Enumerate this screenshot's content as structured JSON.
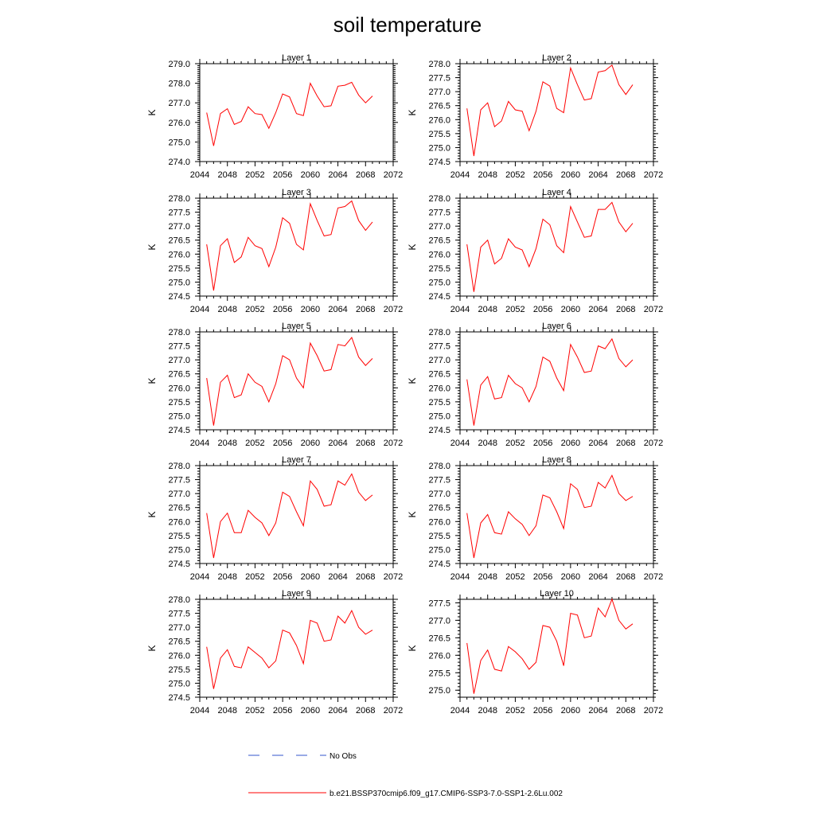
{
  "title": "soil temperature",
  "ylabel": "K",
  "xticks": [
    2044,
    2048,
    2052,
    2056,
    2060,
    2064,
    2068,
    2072
  ],
  "legend": {
    "no_obs": "No Obs",
    "model": "b.e21.BSSP370cmip6.f09_g17.CMIP6-SSP3-7.0-SSP1-2.6Lu.002"
  },
  "colors": {
    "model": "#ff0000",
    "no_obs": "#3355cc",
    "axis": "#000000"
  },
  "chart_data": [
    {
      "type": "line",
      "title": "Layer 1",
      "ylabel": "K",
      "xlim": [
        2044,
        2072
      ],
      "ylim": [
        274.0,
        279.0
      ],
      "yticks": [
        "274.0",
        "275.0",
        "276.0",
        "277.0",
        "278.0",
        "279.0"
      ],
      "x": [
        2045,
        2046,
        2047,
        2048,
        2049,
        2050,
        2051,
        2052,
        2053,
        2054,
        2055,
        2056,
        2057,
        2058,
        2059,
        2060,
        2061,
        2062,
        2063,
        2064,
        2065,
        2066,
        2067,
        2068,
        2069
      ],
      "series": [
        {
          "name": "b.e21.BSSP370cmip6.f09_g17.CMIP6-SSP3-7.0-SSP1-2.6Lu.002",
          "values": [
            276.5,
            274.8,
            276.45,
            276.7,
            275.9,
            276.05,
            276.8,
            276.45,
            276.4,
            275.7,
            276.5,
            277.45,
            277.3,
            276.45,
            276.35,
            278.0,
            277.35,
            276.8,
            276.85,
            277.85,
            277.9,
            278.05,
            277.4,
            277.0,
            277.35
          ]
        }
      ]
    },
    {
      "type": "line",
      "title": "Layer 2",
      "ylabel": "K",
      "xlim": [
        2044,
        2072
      ],
      "ylim": [
        274.5,
        278.0
      ],
      "yticks": [
        "274.5",
        "275.0",
        "275.5",
        "276.0",
        "276.5",
        "277.0",
        "277.5",
        "278.0"
      ],
      "x": [
        2045,
        2046,
        2047,
        2048,
        2049,
        2050,
        2051,
        2052,
        2053,
        2054,
        2055,
        2056,
        2057,
        2058,
        2059,
        2060,
        2061,
        2062,
        2063,
        2064,
        2065,
        2066,
        2067,
        2068,
        2069
      ],
      "series": [
        {
          "name": "b.e21.BSSP370cmip6.f09_g17.CMIP6-SSP3-7.0-SSP1-2.6Lu.002",
          "values": [
            276.4,
            274.7,
            276.35,
            276.6,
            275.75,
            275.95,
            276.65,
            276.35,
            276.3,
            275.6,
            276.3,
            277.35,
            277.2,
            276.4,
            276.25,
            277.85,
            277.25,
            276.7,
            276.75,
            277.7,
            277.75,
            277.95,
            277.25,
            276.9,
            277.25
          ]
        }
      ]
    },
    {
      "type": "line",
      "title": "Layer 3",
      "ylabel": "K",
      "xlim": [
        2044,
        2072
      ],
      "ylim": [
        274.5,
        278.0
      ],
      "yticks": [
        "274.5",
        "275.0",
        "275.5",
        "276.0",
        "276.5",
        "277.0",
        "277.5",
        "278.0"
      ],
      "x": [
        2045,
        2046,
        2047,
        2048,
        2049,
        2050,
        2051,
        2052,
        2053,
        2054,
        2055,
        2056,
        2057,
        2058,
        2059,
        2060,
        2061,
        2062,
        2063,
        2064,
        2065,
        2066,
        2067,
        2068,
        2069
      ],
      "series": [
        {
          "name": "b.e21.BSSP370cmip6.f09_g17.CMIP6-SSP3-7.0-SSP1-2.6Lu.002",
          "values": [
            276.35,
            274.7,
            276.3,
            276.55,
            275.7,
            275.9,
            276.6,
            276.3,
            276.2,
            275.55,
            276.25,
            277.3,
            277.1,
            276.35,
            276.15,
            277.8,
            277.2,
            276.65,
            276.7,
            277.65,
            277.7,
            277.9,
            277.2,
            276.85,
            277.15
          ]
        }
      ]
    },
    {
      "type": "line",
      "title": "Layer 4",
      "ylabel": "K",
      "xlim": [
        2044,
        2072
      ],
      "ylim": [
        274.5,
        278.0
      ],
      "yticks": [
        "274.5",
        "275.0",
        "275.5",
        "276.0",
        "276.5",
        "277.0",
        "277.5",
        "278.0"
      ],
      "x": [
        2045,
        2046,
        2047,
        2048,
        2049,
        2050,
        2051,
        2052,
        2053,
        2054,
        2055,
        2056,
        2057,
        2058,
        2059,
        2060,
        2061,
        2062,
        2063,
        2064,
        2065,
        2066,
        2067,
        2068,
        2069
      ],
      "series": [
        {
          "name": "b.e21.BSSP370cmip6.f09_g17.CMIP6-SSP3-7.0-SSP1-2.6Lu.002",
          "values": [
            276.35,
            274.65,
            276.25,
            276.5,
            275.65,
            275.85,
            276.55,
            276.25,
            276.15,
            275.55,
            276.2,
            277.25,
            277.05,
            276.3,
            276.05,
            277.7,
            277.15,
            276.6,
            276.65,
            277.6,
            277.6,
            277.85,
            277.15,
            276.8,
            277.1
          ]
        }
      ]
    },
    {
      "type": "line",
      "title": "Layer 5",
      "ylabel": "K",
      "xlim": [
        2044,
        2072
      ],
      "ylim": [
        274.5,
        278.0
      ],
      "yticks": [
        "274.5",
        "275.0",
        "275.5",
        "276.0",
        "276.5",
        "277.0",
        "277.5",
        "278.0"
      ],
      "x": [
        2045,
        2046,
        2047,
        2048,
        2049,
        2050,
        2051,
        2052,
        2053,
        2054,
        2055,
        2056,
        2057,
        2058,
        2059,
        2060,
        2061,
        2062,
        2063,
        2064,
        2065,
        2066,
        2067,
        2068,
        2069
      ],
      "series": [
        {
          "name": "b.e21.BSSP370cmip6.f09_g17.CMIP6-SSP3-7.0-SSP1-2.6Lu.002",
          "values": [
            276.35,
            274.65,
            276.2,
            276.45,
            275.65,
            275.75,
            276.5,
            276.2,
            276.05,
            275.5,
            276.15,
            277.15,
            277.0,
            276.35,
            276.0,
            277.6,
            277.15,
            276.6,
            276.65,
            277.55,
            277.5,
            277.8,
            277.1,
            276.8,
            277.05
          ]
        }
      ]
    },
    {
      "type": "line",
      "title": "Layer 6",
      "ylabel": "K",
      "xlim": [
        2044,
        2072
      ],
      "ylim": [
        274.5,
        278.0
      ],
      "yticks": [
        "274.5",
        "275.0",
        "275.5",
        "276.0",
        "276.5",
        "277.0",
        "277.5",
        "278.0"
      ],
      "x": [
        2045,
        2046,
        2047,
        2048,
        2049,
        2050,
        2051,
        2052,
        2053,
        2054,
        2055,
        2056,
        2057,
        2058,
        2059,
        2060,
        2061,
        2062,
        2063,
        2064,
        2065,
        2066,
        2067,
        2068,
        2069
      ],
      "series": [
        {
          "name": "b.e21.BSSP370cmip6.f09_g17.CMIP6-SSP3-7.0-SSP1-2.6Lu.002",
          "values": [
            276.3,
            274.65,
            276.1,
            276.4,
            275.6,
            275.65,
            276.45,
            276.15,
            276.0,
            275.5,
            276.05,
            277.1,
            276.95,
            276.35,
            275.9,
            277.55,
            277.1,
            276.55,
            276.6,
            277.5,
            277.4,
            277.75,
            277.05,
            276.75,
            277.0
          ]
        }
      ]
    },
    {
      "type": "line",
      "title": "Layer 7",
      "ylabel": "K",
      "xlim": [
        2044,
        2072
      ],
      "ylim": [
        274.5,
        278.0
      ],
      "yticks": [
        "274.5",
        "275.0",
        "275.5",
        "276.0",
        "276.5",
        "277.0",
        "277.5",
        "278.0"
      ],
      "x": [
        2045,
        2046,
        2047,
        2048,
        2049,
        2050,
        2051,
        2052,
        2053,
        2054,
        2055,
        2056,
        2057,
        2058,
        2059,
        2060,
        2061,
        2062,
        2063,
        2064,
        2065,
        2066,
        2067,
        2068,
        2069
      ],
      "series": [
        {
          "name": "b.e21.BSSP370cmip6.f09_g17.CMIP6-SSP3-7.0-SSP1-2.6Lu.002",
          "values": [
            276.3,
            274.7,
            276.0,
            276.3,
            275.6,
            275.6,
            276.4,
            276.15,
            275.95,
            275.5,
            275.95,
            277.05,
            276.9,
            276.35,
            275.85,
            277.45,
            277.15,
            276.55,
            276.6,
            277.45,
            277.3,
            277.7,
            277.05,
            276.75,
            276.95
          ]
        }
      ]
    },
    {
      "type": "line",
      "title": "Layer 8",
      "ylabel": "K",
      "xlim": [
        2044,
        2072
      ],
      "ylim": [
        274.5,
        278.0
      ],
      "yticks": [
        "274.5",
        "275.0",
        "275.5",
        "276.0",
        "276.5",
        "277.0",
        "277.5",
        "278.0"
      ],
      "x": [
        2045,
        2046,
        2047,
        2048,
        2049,
        2050,
        2051,
        2052,
        2053,
        2054,
        2055,
        2056,
        2057,
        2058,
        2059,
        2060,
        2061,
        2062,
        2063,
        2064,
        2065,
        2066,
        2067,
        2068,
        2069
      ],
      "series": [
        {
          "name": "b.e21.BSSP370cmip6.f09_g17.CMIP6-SSP3-7.0-SSP1-2.6Lu.002",
          "values": [
            276.3,
            274.7,
            275.95,
            276.25,
            275.6,
            275.55,
            276.35,
            276.1,
            275.9,
            275.5,
            275.85,
            276.95,
            276.85,
            276.35,
            275.75,
            277.35,
            277.15,
            276.5,
            276.55,
            277.4,
            277.2,
            277.65,
            277.0,
            276.75,
            276.9
          ]
        }
      ]
    },
    {
      "type": "line",
      "title": "Layer 9",
      "ylabel": "K",
      "xlim": [
        2044,
        2072
      ],
      "ylim": [
        274.5,
        278.0
      ],
      "yticks": [
        "274.5",
        "275.0",
        "275.5",
        "276.0",
        "276.5",
        "277.0",
        "277.5",
        "278.0"
      ],
      "x": [
        2045,
        2046,
        2047,
        2048,
        2049,
        2050,
        2051,
        2052,
        2053,
        2054,
        2055,
        2056,
        2057,
        2058,
        2059,
        2060,
        2061,
        2062,
        2063,
        2064,
        2065,
        2066,
        2067,
        2068,
        2069
      ],
      "series": [
        {
          "name": "b.e21.BSSP370cmip6.f09_g17.CMIP6-SSP3-7.0-SSP1-2.6Lu.002",
          "values": [
            276.3,
            274.8,
            275.9,
            276.2,
            275.6,
            275.55,
            276.3,
            276.1,
            275.9,
            275.55,
            275.8,
            276.9,
            276.8,
            276.35,
            275.7,
            277.25,
            277.15,
            276.5,
            276.55,
            277.4,
            277.15,
            277.6,
            277.0,
            276.75,
            276.9
          ]
        }
      ]
    },
    {
      "type": "line",
      "title": "Layer 10",
      "ylabel": "K",
      "xlim": [
        2044,
        2072
      ],
      "ylim": [
        274.8,
        277.6
      ],
      "yticks": [
        "275.0",
        "275.5",
        "276.0",
        "276.5",
        "277.0",
        "277.5"
      ],
      "x": [
        2045,
        2046,
        2047,
        2048,
        2049,
        2050,
        2051,
        2052,
        2053,
        2054,
        2055,
        2056,
        2057,
        2058,
        2059,
        2060,
        2061,
        2062,
        2063,
        2064,
        2065,
        2066,
        2067,
        2068,
        2069
      ],
      "series": [
        {
          "name": "b.e21.BSSP370cmip6.f09_g17.CMIP6-SSP3-7.0-SSP1-2.6Lu.002",
          "values": [
            276.35,
            274.9,
            275.85,
            276.15,
            275.6,
            275.55,
            276.25,
            276.1,
            275.9,
            275.6,
            275.8,
            276.85,
            276.8,
            276.4,
            275.7,
            277.2,
            277.15,
            276.5,
            276.55,
            277.35,
            277.1,
            277.6,
            277.0,
            276.75,
            276.9
          ]
        }
      ]
    }
  ]
}
